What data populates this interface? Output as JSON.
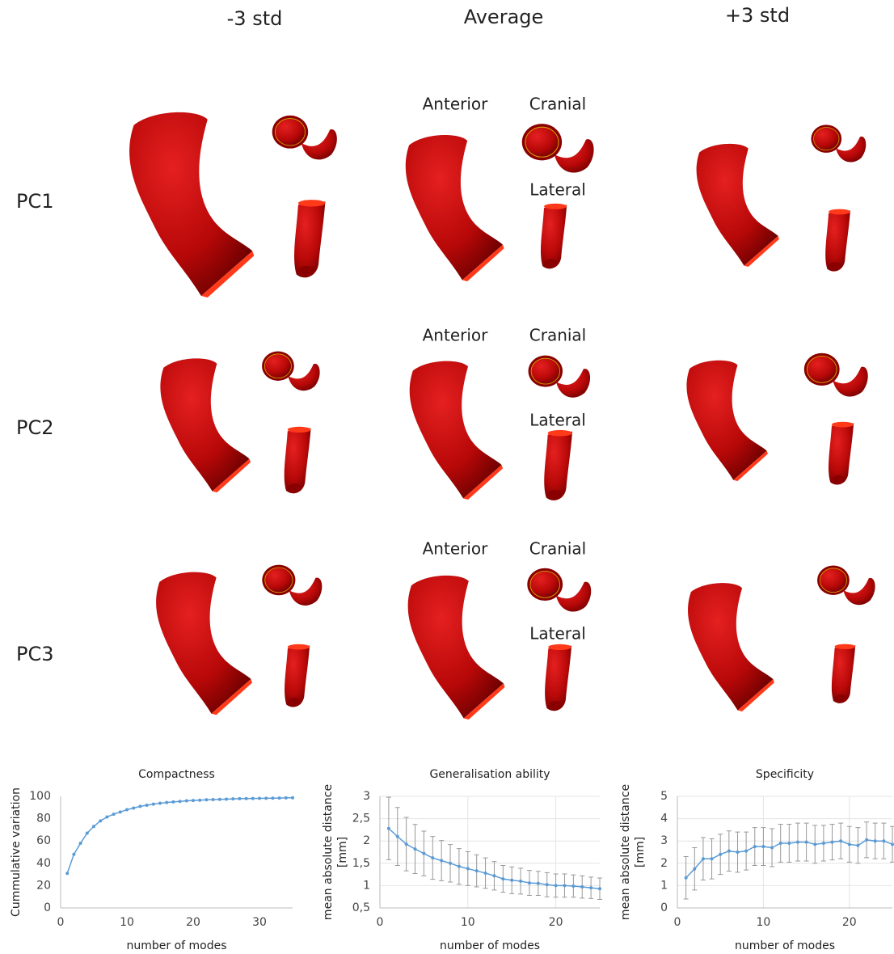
{
  "header": {
    "columns": [
      "-3 std",
      "Average",
      "+3 std"
    ]
  },
  "rows": [
    {
      "label": "PC1",
      "views": {
        "anterior": "Anterior",
        "cranial": "Cranial",
        "lateral": "Lateral"
      }
    },
    {
      "label": "PC2",
      "views": {
        "anterior": "Anterior",
        "cranial": "Cranial",
        "lateral": "Lateral"
      }
    },
    {
      "label": "PC3",
      "views": {
        "anterior": "Anterior",
        "cranial": "Cranial",
        "lateral": "Lateral"
      }
    }
  ],
  "chart_data": [
    {
      "type": "line",
      "title": "Compactness",
      "xlabel": "number of modes",
      "ylabel": [
        "Cummulative variation"
      ],
      "xlim": [
        0,
        35
      ],
      "xticks": [
        0,
        10,
        20,
        30
      ],
      "ylim": [
        0,
        100
      ],
      "yticks": [
        0,
        20,
        40,
        60,
        80,
        100
      ],
      "grid": false,
      "x": [
        1,
        2,
        3,
        4,
        5,
        6,
        7,
        8,
        9,
        10,
        11,
        12,
        13,
        14,
        15,
        16,
        17,
        18,
        19,
        20,
        21,
        22,
        23,
        24,
        25,
        26,
        27,
        28,
        29,
        30,
        31,
        32,
        33,
        34,
        35
      ],
      "series": [
        {
          "color": "#5b9bd5",
          "values": [
            31,
            48,
            58,
            67,
            73,
            78,
            81.5,
            84,
            86,
            88,
            89.5,
            91,
            92,
            93,
            93.8,
            94.5,
            95,
            95.5,
            96,
            96.3,
            96.6,
            96.9,
            97.1,
            97.3,
            97.5,
            97.7,
            97.9,
            98,
            98.1,
            98.2,
            98.3,
            98.4,
            98.5,
            98.6,
            98.7
          ]
        }
      ]
    },
    {
      "type": "line",
      "title": "Generalisation ability",
      "xlabel": "number of modes",
      "ylabel": [
        "mean absolute distance",
        "[mm]"
      ],
      "xlim": [
        0,
        25
      ],
      "xticks": [
        0,
        10,
        20
      ],
      "ylim": [
        0.5,
        3
      ],
      "yticks": [
        {
          "value": 0.5,
          "label": "0,5"
        },
        1,
        {
          "value": 1.5,
          "label": "1,5"
        },
        2,
        {
          "value": 2.5,
          "label": "2,5"
        },
        3
      ],
      "grid": true,
      "x": [
        1,
        2,
        3,
        4,
        5,
        6,
        7,
        8,
        9,
        10,
        11,
        12,
        13,
        14,
        15,
        16,
        17,
        18,
        19,
        20,
        21,
        22,
        23,
        24,
        25
      ],
      "series": [
        {
          "color": "#5b9bd5",
          "values": [
            2.28,
            2.1,
            1.93,
            1.82,
            1.72,
            1.62,
            1.56,
            1.5,
            1.43,
            1.38,
            1.33,
            1.28,
            1.22,
            1.15,
            1.12,
            1.1,
            1.06,
            1.05,
            1.02,
            1.0,
            1.0,
            0.99,
            0.97,
            0.95,
            0.93
          ],
          "errors": [
            0.7,
            0.65,
            0.6,
            0.55,
            0.5,
            0.48,
            0.45,
            0.42,
            0.4,
            0.38,
            0.36,
            0.34,
            0.32,
            0.3,
            0.3,
            0.29,
            0.28,
            0.27,
            0.27,
            0.26,
            0.26,
            0.25,
            0.25,
            0.24,
            0.24
          ]
        }
      ]
    },
    {
      "type": "line",
      "title": "Specificity",
      "xlabel": "number of modes",
      "ylabel": [
        "mean absolute distance",
        "[mm]"
      ],
      "xlim": [
        0,
        25
      ],
      "xticks": [
        0,
        10,
        20
      ],
      "ylim": [
        0,
        5
      ],
      "yticks": [
        0,
        1,
        2,
        3,
        4,
        5
      ],
      "grid": true,
      "x": [
        1,
        2,
        3,
        4,
        5,
        6,
        7,
        8,
        9,
        10,
        11,
        12,
        13,
        14,
        15,
        16,
        17,
        18,
        19,
        20,
        21,
        22,
        23,
        24,
        25
      ],
      "series": [
        {
          "color": "#5b9bd5",
          "values": [
            1.35,
            1.75,
            2.2,
            2.2,
            2.4,
            2.55,
            2.5,
            2.55,
            2.75,
            2.75,
            2.7,
            2.9,
            2.9,
            2.95,
            2.95,
            2.85,
            2.9,
            2.95,
            3.0,
            2.85,
            2.8,
            3.05,
            3.0,
            3.0,
            2.85
          ],
          "errors": [
            0.95,
            0.95,
            0.95,
            0.9,
            0.9,
            0.9,
            0.9,
            0.85,
            0.85,
            0.85,
            0.85,
            0.85,
            0.85,
            0.85,
            0.85,
            0.85,
            0.8,
            0.8,
            0.8,
            0.8,
            0.8,
            0.8,
            0.8,
            0.8,
            0.8
          ]
        }
      ]
    }
  ]
}
